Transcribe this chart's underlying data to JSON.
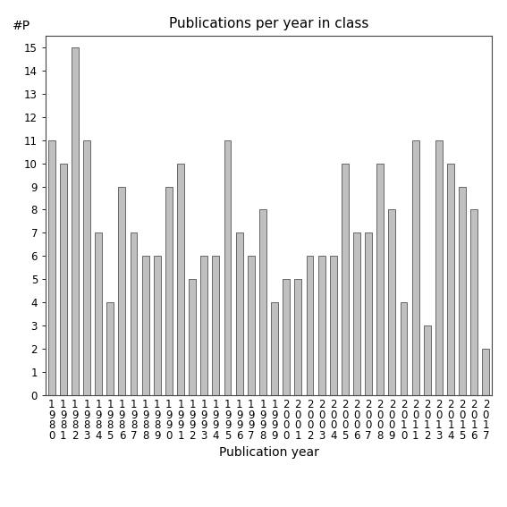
{
  "title": "Publications per year in class",
  "xlabel": "Publication year",
  "ylabel": "#P",
  "years": [
    1980,
    1981,
    1982,
    1983,
    1984,
    1985,
    1986,
    1987,
    1988,
    1989,
    1990,
    1991,
    1992,
    1993,
    1994,
    1995,
    1996,
    1997,
    1998,
    1999,
    2000,
    2001,
    2002,
    2003,
    2004,
    2005,
    2006,
    2007,
    2008,
    2009,
    2010,
    2011,
    2012,
    2013,
    2014,
    2015,
    2016,
    2017
  ],
  "values": [
    11,
    10,
    15,
    11,
    7,
    4,
    9,
    7,
    6,
    6,
    9,
    10,
    5,
    6,
    6,
    11,
    7,
    6,
    8,
    4,
    5,
    5,
    6,
    6,
    6,
    10,
    7,
    7,
    10,
    8,
    4,
    11,
    3,
    11,
    10,
    9,
    8,
    2
  ],
  "bar_color": "#c0c0c0",
  "bar_edgecolor": "#555555",
  "background_color": "#ffffff",
  "ylim": [
    0,
    15.5
  ],
  "yticks": [
    0,
    1,
    2,
    3,
    4,
    5,
    6,
    7,
    8,
    9,
    10,
    11,
    12,
    13,
    14,
    15
  ],
  "title_fontsize": 11,
  "axis_label_fontsize": 10,
  "tick_fontsize": 8.5
}
